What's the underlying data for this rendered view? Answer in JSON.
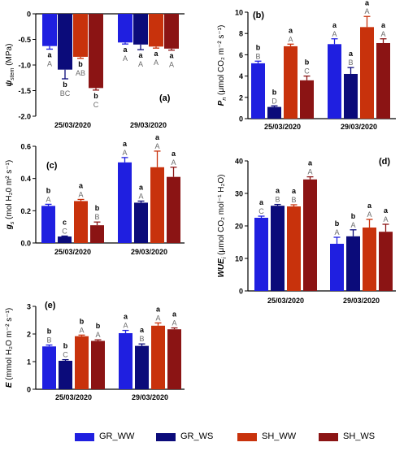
{
  "chart_data": [
    {
      "type": "bar",
      "panel_label": "(a)",
      "ylabel_main": "ψ",
      "ylabel_sub": "stem",
      "ylabel_unit": " (MPa)",
      "ylim": [
        -2.0,
        0
      ],
      "yticks": [
        0,
        -0.5,
        -1.0,
        -1.5,
        -2.0
      ],
      "ytick_labels": [
        "0",
        "-0.5",
        "-1.0",
        "-1.5",
        "-2.0"
      ],
      "categories": [
        "25/03/2020",
        "29/03/2020"
      ],
      "series": [
        {
          "name": "GR_WW",
          "values": [
            -0.63,
            -0.56
          ],
          "errors": [
            0.06,
            0.03
          ]
        },
        {
          "name": "GR_WS",
          "values": [
            -1.09,
            -0.6
          ],
          "errors": [
            0.18,
            0.1
          ]
        },
        {
          "name": "SH_WW",
          "values": [
            -0.84,
            -0.64
          ],
          "errors": [
            0.03,
            0.03
          ]
        },
        {
          "name": "SH_WS",
          "values": [
            -1.45,
            -0.68
          ],
          "errors": [
            0.04,
            0.03
          ]
        }
      ],
      "letters_lower": [
        [
          "a",
          "b",
          "b",
          "b"
        ],
        [
          "a",
          "a",
          "a",
          "a"
        ]
      ],
      "letters_upper": [
        [
          "A",
          "BC",
          "AB",
          "C"
        ],
        [
          "A",
          "A",
          "A",
          "A"
        ]
      ]
    },
    {
      "type": "bar",
      "panel_label": "(b)",
      "ylabel_main": "P",
      "ylabel_sub": "n",
      "ylabel_unit": " (μmol CO₂ m⁻² s⁻¹)",
      "ylim": [
        0,
        10
      ],
      "yticks": [
        0,
        2,
        4,
        6,
        8,
        10
      ],
      "ytick_labels": [
        "0",
        "2",
        "4",
        "6",
        "8",
        "10"
      ],
      "categories": [
        "25/03/2020",
        "29/03/2020"
      ],
      "series": [
        {
          "name": "GR_WW",
          "values": [
            5.2,
            7.0
          ],
          "errors": [
            0.2,
            0.5
          ]
        },
        {
          "name": "GR_WS",
          "values": [
            1.1,
            4.2
          ],
          "errors": [
            0.1,
            0.6
          ]
        },
        {
          "name": "SH_WW",
          "values": [
            6.8,
            8.6
          ],
          "errors": [
            0.2,
            1.0
          ]
        },
        {
          "name": "SH_WS",
          "values": [
            3.6,
            7.1
          ],
          "errors": [
            0.4,
            0.4
          ]
        }
      ],
      "letters_lower": [
        [
          "b",
          "b",
          "a",
          "b"
        ],
        [
          "a",
          "a",
          "a",
          "a"
        ]
      ],
      "letters_upper": [
        [
          "B",
          "D",
          "A",
          "C"
        ],
        [
          "A",
          "B",
          "A",
          "A"
        ]
      ]
    },
    {
      "type": "bar",
      "panel_label": "(c)",
      "ylabel_main": "g",
      "ylabel_sub": "s",
      "ylabel_unit": " (mol H₂0 m² s⁻¹)",
      "ylim": [
        0,
        0.6
      ],
      "yticks": [
        0,
        0.2,
        0.4,
        0.6
      ],
      "ytick_labels": [
        "0.0",
        "0.2",
        "0.4",
        "0.6"
      ],
      "categories": [
        "25/03/2020",
        "29/03/2020"
      ],
      "series": [
        {
          "name": "GR_WW",
          "values": [
            0.23,
            0.5
          ],
          "errors": [
            0.01,
            0.03
          ]
        },
        {
          "name": "GR_WS",
          "values": [
            0.04,
            0.25
          ],
          "errors": [
            0.003,
            0.01
          ]
        },
        {
          "name": "SH_WW",
          "values": [
            0.26,
            0.47
          ],
          "errors": [
            0.01,
            0.1
          ]
        },
        {
          "name": "SH_WS",
          "values": [
            0.11,
            0.41
          ],
          "errors": [
            0.02,
            0.06
          ]
        }
      ],
      "letters_lower": [
        [
          "b",
          "c",
          "a",
          "b"
        ],
        [
          "a",
          "a",
          "a",
          "a"
        ]
      ],
      "letters_upper": [
        [
          "A",
          "C",
          "A",
          "B"
        ],
        [
          "A",
          "A",
          "A",
          "A"
        ]
      ]
    },
    {
      "type": "bar",
      "panel_label": "(d)",
      "ylabel_main": "WUE",
      "ylabel_sub": "i",
      "ylabel_unit": " (μmol CO₂ mol⁻¹ H₂O)",
      "ylim": [
        0,
        40
      ],
      "yticks": [
        0,
        10,
        20,
        30,
        40
      ],
      "ytick_labels": [
        "0",
        "10",
        "20",
        "30",
        "40"
      ],
      "categories": [
        "25/03/2020",
        "29/03/2020"
      ],
      "series": [
        {
          "name": "GR_WW",
          "values": [
            22.5,
            14.5
          ],
          "errors": [
            0.5,
            2.0
          ]
        },
        {
          "name": "GR_WS",
          "values": [
            26.2,
            16.8
          ],
          "errors": [
            0.4,
            2.0
          ]
        },
        {
          "name": "SH_WW",
          "values": [
            26.0,
            19.5
          ],
          "errors": [
            0.5,
            2.5
          ]
        },
        {
          "name": "SH_WS",
          "values": [
            34.3,
            18.2
          ],
          "errors": [
            0.8,
            2.3
          ]
        }
      ],
      "letters_lower": [
        [
          "a",
          "a",
          "a",
          "a"
        ],
        [
          "b",
          "b",
          "a",
          "a"
        ]
      ],
      "letters_upper": [
        [
          "C",
          "B",
          "B",
          "A"
        ],
        [
          "A",
          "A",
          "A",
          "A"
        ]
      ]
    },
    {
      "type": "bar",
      "panel_label": "(e)",
      "ylabel_main": "E",
      "ylabel_sub": "",
      "ylabel_unit": " (mmol H₂O m⁻² s⁻¹)",
      "ylim": [
        0,
        3
      ],
      "yticks": [
        0,
        1,
        2,
        3
      ],
      "ytick_labels": [
        "0",
        "1",
        "2",
        "3"
      ],
      "categories": [
        "25/03/2020",
        "29/03/2020"
      ],
      "series": [
        {
          "name": "GR_WW",
          "values": [
            1.55,
            2.03
          ],
          "errors": [
            0.05,
            0.1
          ]
        },
        {
          "name": "GR_WS",
          "values": [
            1.03,
            1.57
          ],
          "errors": [
            0.04,
            0.07
          ]
        },
        {
          "name": "SH_WW",
          "values": [
            1.92,
            2.3
          ],
          "errors": [
            0.04,
            0.1
          ]
        },
        {
          "name": "SH_WS",
          "values": [
            1.75,
            2.17
          ],
          "errors": [
            0.04,
            0.05
          ]
        }
      ],
      "letters_lower": [
        [
          "b",
          "b",
          "b",
          "b"
        ],
        [
          "a",
          "a",
          "a",
          "a"
        ]
      ],
      "letters_upper": [
        [
          "B",
          "C",
          "A",
          "A"
        ],
        [
          "A",
          "B",
          "A",
          "A"
        ]
      ]
    }
  ],
  "legend": [
    {
      "name": "GR_WW",
      "color": "#1f1fe0"
    },
    {
      "name": "GR_WS",
      "color": "#0b0b7a"
    },
    {
      "name": "SH_WW",
      "color": "#c8320c"
    },
    {
      "name": "SH_WS",
      "color": "#8b1414"
    }
  ],
  "colors": {
    "GR_WW": "#1f1fe0",
    "GR_WS": "#0b0b7a",
    "SH_WW": "#c8320c",
    "SH_WS": "#8b1414",
    "letter_lower": "#000000",
    "letter_upper": "#6b6b6b",
    "axis": "#000000"
  }
}
